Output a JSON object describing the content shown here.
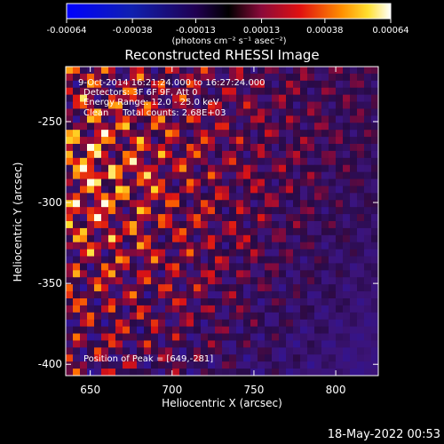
{
  "chart_data": {
    "type": "heatmap",
    "title": "Reconstructed RHESSI Image",
    "xlabel": "Heliocentric X (arcsec)",
    "ylabel": "Heliocentric Y (arcsec)",
    "xlim": [
      635,
      826
    ],
    "ylim": [
      -407,
      -216
    ],
    "x_ticks": [
      650,
      700,
      750,
      800
    ],
    "y_ticks": [
      -250,
      -300,
      -350,
      -400
    ],
    "colorbar": {
      "ticks": [
        "-0.00064",
        "-0.00038",
        "-0.00013",
        "0.00013",
        "0.00038",
        "0.00064"
      ],
      "tick_values": [
        -0.00064,
        -0.00038,
        -0.00013,
        0.00013,
        0.00038,
        0.00064
      ],
      "range": [
        -0.00064,
        0.00064
      ],
      "unit_label": "(photons cm⁻² s⁻¹ asec⁻²)",
      "colormap": "red-temperature (blue negative, purple-red-yellow-white positive)"
    },
    "annotations": [
      "9-Oct-2014 16:21:24.000 to 16:27:24.000",
      "Detectors: 3F 6F 9F, Att 0",
      "Energy Range: 12.0 - 25.0 keV",
      "Clean     Total counts: 2.68E+03"
    ],
    "peak_label": "Position of Peak = [649,-281]",
    "peak": [
      649,
      -281
    ],
    "total_counts": 2680,
    "energy_range_kev": [
      12.0,
      25.0
    ],
    "timestamp": "18-May-2022 00:53"
  }
}
